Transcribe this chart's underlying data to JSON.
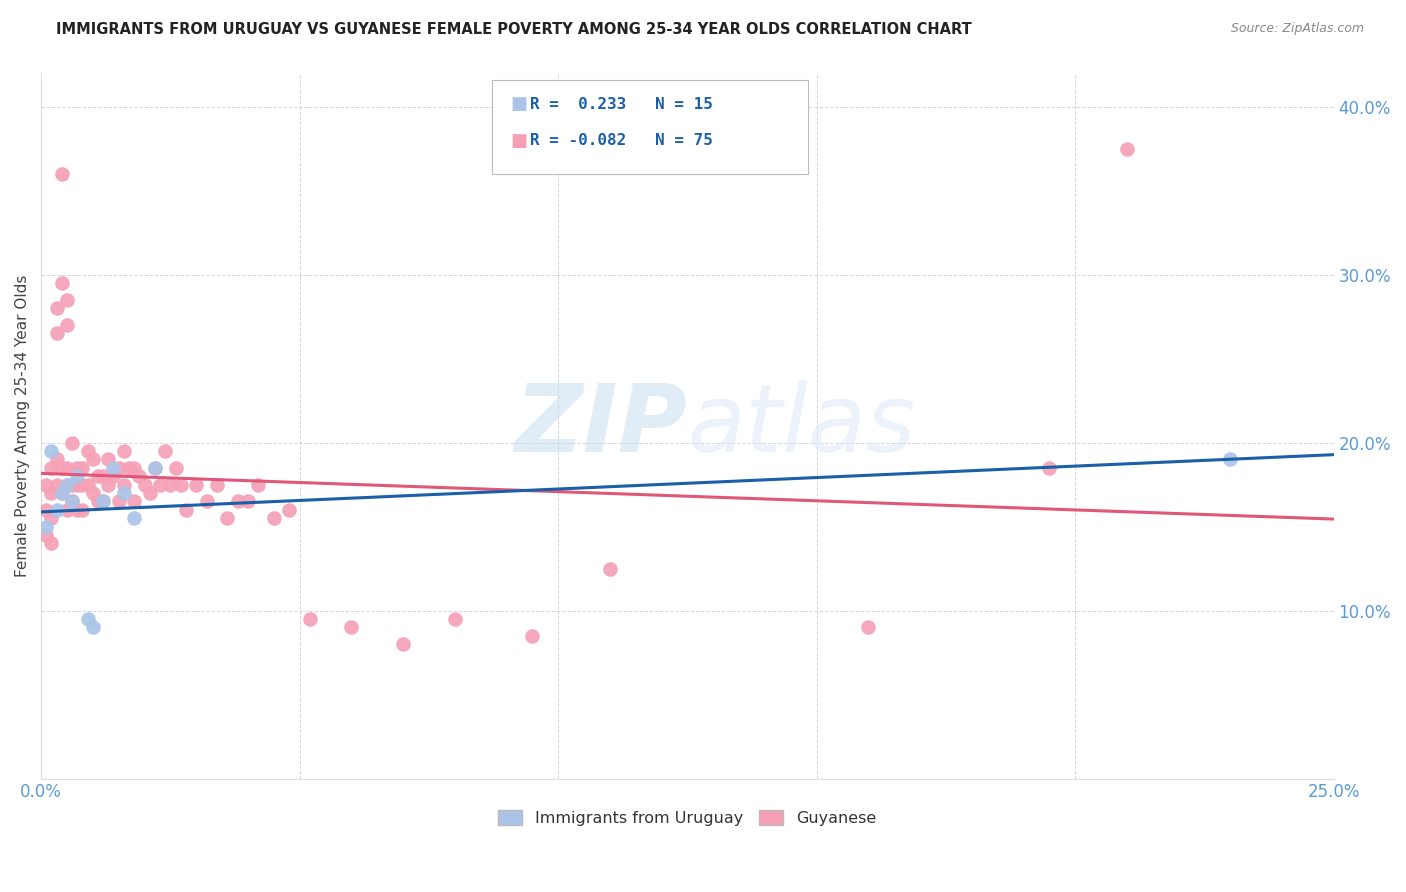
{
  "title": "IMMIGRANTS FROM URUGUAY VS GUYANESE FEMALE POVERTY AMONG 25-34 YEAR OLDS CORRELATION CHART",
  "source": "Source: ZipAtlas.com",
  "ylabel": "Female Poverty Among 25-34 Year Olds",
  "xlim": [
    0,
    0.25
  ],
  "ylim": [
    0,
    0.42
  ],
  "xticks": [
    0.0,
    0.05,
    0.1,
    0.15,
    0.2,
    0.25
  ],
  "yticks": [
    0.0,
    0.1,
    0.2,
    0.3,
    0.4
  ],
  "xtick_labels": [
    "0.0%",
    "",
    "",
    "",
    "",
    "25.0%"
  ],
  "ytick_labels": [
    "",
    "10.0%",
    "20.0%",
    "30.0%",
    "40.0%"
  ],
  "uruguay_R": 0.233,
  "uruguay_N": 15,
  "guyanese_R": -0.082,
  "guyanese_N": 75,
  "uruguay_color": "#aac4e8",
  "guyanese_color": "#f5a0b5",
  "line_blue": "#1a5fa8",
  "line_pink": "#e05878",
  "watermark_zip": "ZIP",
  "watermark_atlas": "atlas",
  "uruguay_x": [
    0.001,
    0.002,
    0.003,
    0.004,
    0.005,
    0.006,
    0.007,
    0.009,
    0.01,
    0.012,
    0.014,
    0.016,
    0.018,
    0.022,
    0.23
  ],
  "uruguay_y": [
    0.15,
    0.195,
    0.16,
    0.17,
    0.175,
    0.165,
    0.18,
    0.095,
    0.09,
    0.165,
    0.185,
    0.17,
    0.155,
    0.185,
    0.19
  ],
  "guyanese_x": [
    0.001,
    0.001,
    0.001,
    0.002,
    0.002,
    0.002,
    0.002,
    0.003,
    0.003,
    0.003,
    0.003,
    0.004,
    0.004,
    0.004,
    0.004,
    0.005,
    0.005,
    0.005,
    0.005,
    0.005,
    0.006,
    0.006,
    0.006,
    0.007,
    0.007,
    0.007,
    0.008,
    0.008,
    0.008,
    0.009,
    0.009,
    0.01,
    0.01,
    0.011,
    0.011,
    0.012,
    0.012,
    0.013,
    0.013,
    0.014,
    0.015,
    0.015,
    0.016,
    0.016,
    0.017,
    0.018,
    0.018,
    0.019,
    0.02,
    0.021,
    0.022,
    0.023,
    0.024,
    0.025,
    0.026,
    0.027,
    0.028,
    0.03,
    0.032,
    0.034,
    0.036,
    0.038,
    0.04,
    0.042,
    0.045,
    0.048,
    0.052,
    0.06,
    0.07,
    0.08,
    0.095,
    0.11,
    0.16,
    0.195,
    0.21
  ],
  "guyanese_y": [
    0.175,
    0.16,
    0.145,
    0.185,
    0.17,
    0.155,
    0.14,
    0.28,
    0.265,
    0.19,
    0.175,
    0.36,
    0.295,
    0.185,
    0.17,
    0.285,
    0.27,
    0.185,
    0.175,
    0.16,
    0.2,
    0.175,
    0.165,
    0.185,
    0.175,
    0.16,
    0.185,
    0.175,
    0.16,
    0.195,
    0.175,
    0.19,
    0.17,
    0.18,
    0.165,
    0.18,
    0.165,
    0.19,
    0.175,
    0.18,
    0.185,
    0.165,
    0.195,
    0.175,
    0.185,
    0.185,
    0.165,
    0.18,
    0.175,
    0.17,
    0.185,
    0.175,
    0.195,
    0.175,
    0.185,
    0.175,
    0.16,
    0.175,
    0.165,
    0.175,
    0.155,
    0.165,
    0.165,
    0.175,
    0.155,
    0.16,
    0.095,
    0.09,
    0.08,
    0.095,
    0.085,
    0.125,
    0.09,
    0.185,
    0.375
  ]
}
